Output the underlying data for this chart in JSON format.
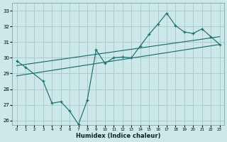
{
  "xlabel": "Humidex (Indice chaleur)",
  "xlim": [
    -0.5,
    23.5
  ],
  "ylim": [
    25.7,
    33.5
  ],
  "yticks": [
    26,
    27,
    28,
    29,
    30,
    31,
    32,
    33
  ],
  "xticks": [
    0,
    1,
    2,
    3,
    4,
    5,
    6,
    7,
    8,
    9,
    10,
    11,
    12,
    13,
    14,
    15,
    16,
    17,
    18,
    19,
    20,
    21,
    22,
    23
  ],
  "bg_color": "#cce8e8",
  "grid_color": "#aacccc",
  "line_color": "#1a7070",
  "line1_x": [
    0,
    1,
    3,
    4,
    5,
    6,
    7,
    8,
    9,
    10,
    11,
    12,
    13,
    14,
    15,
    16,
    17,
    18,
    19,
    20,
    21,
    22,
    23
  ],
  "line1_y": [
    29.8,
    29.4,
    28.5,
    27.1,
    27.2,
    26.6,
    25.75,
    27.3,
    30.5,
    29.65,
    30.0,
    30.05,
    30.0,
    30.75,
    31.5,
    32.15,
    32.85,
    32.05,
    31.65,
    31.55,
    31.85,
    31.35,
    30.85
  ],
  "line2_x": [
    0,
    23
  ],
  "line2_y": [
    28.85,
    30.85
  ],
  "line3_x": [
    0,
    23
  ],
  "line3_y": [
    29.5,
    31.35
  ]
}
